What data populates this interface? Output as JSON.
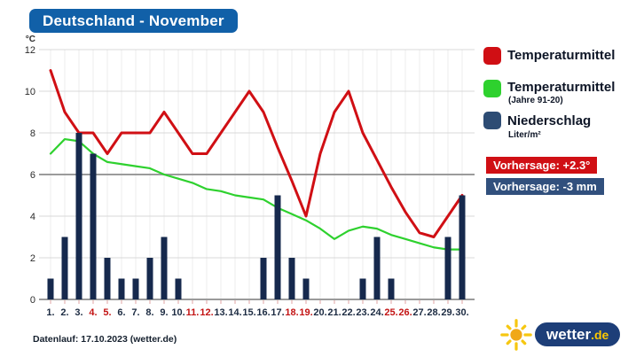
{
  "title": "Deutschland - November",
  "colors": {
    "title_bg": "#1160a8",
    "brand_pill_bg": "#1d3e78",
    "sun": "#f0a818",
    "sun_rays": "#f6c710"
  },
  "chart_data": {
    "type": "line+bar",
    "title": "Deutschland - November",
    "ylabel": "°C",
    "ylim": [
      0,
      12
    ],
    "yticks": [
      0,
      2,
      4,
      6,
      8,
      10,
      12
    ],
    "grid": true,
    "legend_position": "right",
    "x_labels": [
      "1.",
      "2.",
      "3.",
      "4.",
      "5.",
      "6.",
      "7.",
      "8.",
      "9.",
      "10.",
      "11.",
      "12.",
      "13.",
      "14.",
      "15.",
      "16.",
      "17.",
      "18.",
      "19.",
      "20.",
      "21.",
      "22.",
      "23.",
      "24.",
      "25.",
      "26.",
      "27.",
      "28.",
      "29.",
      "30."
    ],
    "weekend_days": [
      4,
      5,
      11,
      12,
      18,
      19,
      25,
      26
    ],
    "weekday_label_color": "#1c2b42",
    "weekend_label_color": "#c31414",
    "series": [
      {
        "key": "temp_forecast",
        "name": "Temperaturmittel",
        "type": "line",
        "color": "#d00f14",
        "values": [
          11,
          9,
          8,
          8,
          7,
          8,
          8,
          8,
          9,
          8,
          7,
          7,
          8,
          9,
          10,
          9,
          7.3,
          5.7,
          4,
          7,
          9,
          10,
          8,
          6.7,
          5.4,
          4.2,
          3.2,
          3,
          4,
          5
        ]
      },
      {
        "key": "temp_climate",
        "name": "Temperaturmittel (Jahre 91-20)",
        "type": "line",
        "color": "#2ed12e",
        "values": [
          7,
          7.7,
          7.6,
          7,
          6.6,
          6.5,
          6.4,
          6.3,
          6,
          5.8,
          5.6,
          5.3,
          5.2,
          5,
          4.9,
          4.8,
          4.4,
          4.1,
          3.8,
          3.4,
          2.9,
          3.3,
          3.5,
          3.4,
          3.1,
          2.9,
          2.7,
          2.5,
          2.4,
          2.4
        ]
      },
      {
        "key": "precipitation",
        "name": "Niederschlag (Liter/m²)",
        "type": "bar",
        "color": "#16294d",
        "values": [
          1,
          3,
          8,
          7,
          2,
          1,
          1,
          2,
          3,
          1,
          0,
          0,
          0,
          0,
          0,
          2,
          5,
          2,
          1,
          0,
          0,
          0,
          1,
          3,
          1,
          0,
          0,
          0,
          3,
          5
        ]
      }
    ]
  },
  "legend": {
    "items": [
      {
        "label": "Temperaturmittel",
        "sublabel": "",
        "swatch_color": "#d00f14"
      },
      {
        "label": "Temperaturmittel",
        "sublabel": "(Jahre 91-20)",
        "swatch_color": "#2ed12e"
      },
      {
        "label": "Niederschlag",
        "sublabel": "Liter/m²",
        "swatch_color": "#2d4c74"
      }
    ],
    "badges": [
      {
        "text": "Vorhersage: +2.3°",
        "bg": "#d00f14"
      },
      {
        "text": "Vorhersage: -3 mm",
        "bg": "#31507d"
      }
    ]
  },
  "footer": {
    "datenlauf": "Datenlauf: 17.10.2023 (wetter.de)"
  },
  "logo": {
    "brand": "wetter",
    "tld": ".de"
  }
}
